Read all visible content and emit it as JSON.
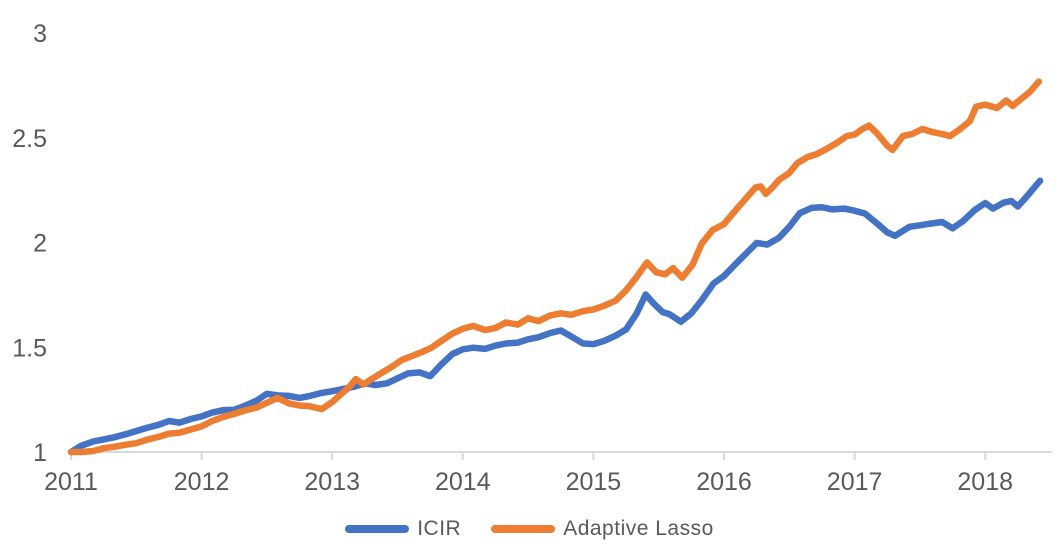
{
  "chart_data": {
    "type": "line",
    "title": "",
    "xlabel": "",
    "ylabel": "",
    "xlim": [
      2011,
      2018.45
    ],
    "ylim": [
      1,
      3
    ],
    "x_ticks": [
      2011,
      2012,
      2013,
      2014,
      2015,
      2016,
      2017,
      2018
    ],
    "x_tick_labels": [
      "2011",
      "2012",
      "2013",
      "2014",
      "2015",
      "2016",
      "2017",
      "2018"
    ],
    "y_ticks": [
      1,
      1.5,
      2,
      2.5,
      3
    ],
    "y_tick_labels": [
      "1",
      "1.5",
      "2",
      "2.5",
      "3"
    ],
    "grid": false,
    "legend_position": "bottom-center",
    "series": [
      {
        "name": "ICIR",
        "color": "#4472C4",
        "x": [
          2011.0,
          2011.08,
          2011.17,
          2011.25,
          2011.33,
          2011.42,
          2011.5,
          2011.58,
          2011.67,
          2011.75,
          2011.83,
          2011.92,
          2012.0,
          2012.08,
          2012.17,
          2012.25,
          2012.33,
          2012.42,
          2012.5,
          2012.58,
          2012.67,
          2012.75,
          2012.83,
          2012.92,
          2013.0,
          2013.08,
          2013.17,
          2013.25,
          2013.33,
          2013.42,
          2013.5,
          2013.58,
          2013.67,
          2013.75,
          2013.83,
          2013.92,
          2014.0,
          2014.08,
          2014.17,
          2014.25,
          2014.33,
          2014.42,
          2014.5,
          2014.58,
          2014.67,
          2014.75,
          2014.83,
          2014.92,
          2015.0,
          2015.08,
          2015.17,
          2015.25,
          2015.33,
          2015.4,
          2015.46,
          2015.53,
          2015.58,
          2015.67,
          2015.75,
          2015.83,
          2015.92,
          2016.0,
          2016.08,
          2016.17,
          2016.25,
          2016.33,
          2016.42,
          2016.5,
          2016.58,
          2016.67,
          2016.75,
          2016.83,
          2016.92,
          2017.0,
          2017.08,
          2017.17,
          2017.25,
          2017.31,
          2017.42,
          2017.5,
          2017.58,
          2017.67,
          2017.75,
          2017.83,
          2017.92,
          2018.0,
          2018.06,
          2018.14,
          2018.2,
          2018.25,
          2018.33,
          2018.42
        ],
        "values": [
          1.0,
          1.03,
          1.05,
          1.06,
          1.07,
          1.085,
          1.1,
          1.115,
          1.13,
          1.148,
          1.14,
          1.158,
          1.17,
          1.188,
          1.2,
          1.202,
          1.22,
          1.245,
          1.278,
          1.27,
          1.268,
          1.258,
          1.268,
          1.282,
          1.29,
          1.3,
          1.312,
          1.328,
          1.32,
          1.328,
          1.352,
          1.375,
          1.38,
          1.362,
          1.415,
          1.468,
          1.49,
          1.498,
          1.492,
          1.508,
          1.518,
          1.522,
          1.538,
          1.548,
          1.568,
          1.58,
          1.552,
          1.518,
          1.515,
          1.53,
          1.555,
          1.585,
          1.66,
          1.752,
          1.71,
          1.668,
          1.658,
          1.622,
          1.662,
          1.725,
          1.805,
          1.84,
          1.892,
          1.948,
          1.998,
          1.99,
          2.022,
          2.075,
          2.14,
          2.165,
          2.168,
          2.158,
          2.162,
          2.152,
          2.138,
          2.092,
          2.048,
          2.032,
          2.075,
          2.082,
          2.09,
          2.098,
          2.068,
          2.102,
          2.155,
          2.188,
          2.162,
          2.19,
          2.198,
          2.172,
          2.228,
          2.295
        ]
      },
      {
        "name": "Adaptive Lasso",
        "color": "#ED7D31",
        "x": [
          2011.0,
          2011.08,
          2011.17,
          2011.25,
          2011.33,
          2011.42,
          2011.5,
          2011.58,
          2011.67,
          2011.75,
          2011.83,
          2011.92,
          2012.0,
          2012.08,
          2012.17,
          2012.25,
          2012.33,
          2012.42,
          2012.5,
          2012.58,
          2012.67,
          2012.75,
          2012.83,
          2012.92,
          2013.0,
          2013.06,
          2013.13,
          2013.18,
          2013.24,
          2013.3,
          2013.38,
          2013.46,
          2013.53,
          2013.61,
          2013.69,
          2013.76,
          2013.83,
          2013.92,
          2014.0,
          2014.08,
          2014.17,
          2014.25,
          2014.33,
          2014.42,
          2014.5,
          2014.58,
          2014.67,
          2014.75,
          2014.83,
          2014.92,
          2015.0,
          2015.08,
          2015.17,
          2015.25,
          2015.33,
          2015.41,
          2015.48,
          2015.55,
          2015.61,
          2015.68,
          2015.76,
          2015.83,
          2015.91,
          2016.0,
          2016.08,
          2016.16,
          2016.24,
          2016.28,
          2016.32,
          2016.37,
          2016.42,
          2016.5,
          2016.56,
          2016.64,
          2016.71,
          2016.79,
          2016.87,
          2016.94,
          2017.0,
          2017.06,
          2017.11,
          2017.17,
          2017.25,
          2017.29,
          2017.37,
          2017.44,
          2017.52,
          2017.59,
          2017.67,
          2017.73,
          2017.8,
          2017.88,
          2017.93,
          2018.0,
          2018.09,
          2018.16,
          2018.21,
          2018.28,
          2018.34,
          2018.41
        ],
        "values": [
          1.0,
          1.0,
          1.005,
          1.018,
          1.025,
          1.035,
          1.042,
          1.058,
          1.072,
          1.088,
          1.092,
          1.108,
          1.122,
          1.148,
          1.168,
          1.182,
          1.198,
          1.212,
          1.235,
          1.258,
          1.232,
          1.222,
          1.218,
          1.205,
          1.238,
          1.272,
          1.31,
          1.348,
          1.322,
          1.348,
          1.378,
          1.408,
          1.438,
          1.458,
          1.478,
          1.498,
          1.528,
          1.565,
          1.588,
          1.602,
          1.582,
          1.592,
          1.618,
          1.608,
          1.638,
          1.625,
          1.652,
          1.662,
          1.655,
          1.672,
          1.68,
          1.698,
          1.722,
          1.772,
          1.835,
          1.905,
          1.858,
          1.848,
          1.878,
          1.832,
          1.895,
          1.995,
          2.058,
          2.088,
          2.148,
          2.205,
          2.262,
          2.268,
          2.232,
          2.262,
          2.298,
          2.332,
          2.378,
          2.408,
          2.422,
          2.448,
          2.478,
          2.508,
          2.515,
          2.542,
          2.558,
          2.522,
          2.462,
          2.442,
          2.508,
          2.518,
          2.542,
          2.528,
          2.518,
          2.508,
          2.538,
          2.578,
          2.648,
          2.658,
          2.642,
          2.678,
          2.652,
          2.688,
          2.718,
          2.768
        ]
      }
    ]
  },
  "colors": {
    "axis_text": "#595959",
    "axis_line": "#D9D9D9",
    "background": "#FFFFFF"
  },
  "legend": {
    "items": [
      {
        "label": "ICIR",
        "color": "#4472C4"
      },
      {
        "label": "Adaptive Lasso",
        "color": "#ED7D31"
      }
    ]
  }
}
